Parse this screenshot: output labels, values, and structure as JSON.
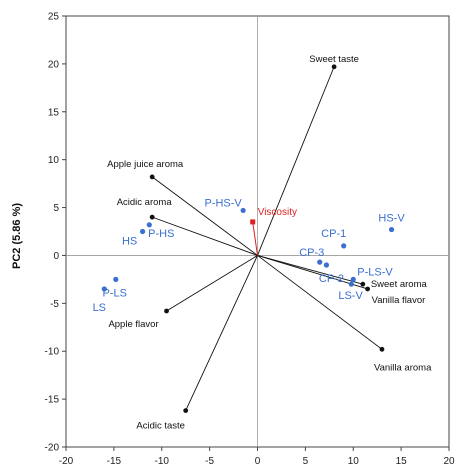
{
  "chart_data": {
    "type": "scatter",
    "title": "",
    "xlabel": "",
    "ylabel": "PC2 (5.86 %)",
    "xlim": [
      -20,
      20
    ],
    "ylim": [
      -20,
      25
    ],
    "xticks": [
      -20,
      -15,
      -10,
      -5,
      0,
      5,
      10,
      15,
      20
    ],
    "yticks": [
      -20,
      -15,
      -10,
      -5,
      0,
      5,
      10,
      15,
      20,
      25
    ],
    "grid": false,
    "colors": {
      "vectors": "#111111",
      "observations": "#3a6fd0",
      "viscosity": "#e02020"
    },
    "vectors": [
      {
        "name": "Sweet taste",
        "x": 8,
        "y": 19.7
      },
      {
        "name": "Apple juice aroma",
        "x": -11,
        "y": 8.2
      },
      {
        "name": "Acidic aroma",
        "x": -11,
        "y": 4
      },
      {
        "name": "Apple flavor",
        "x": -9.5,
        "y": -5.8
      },
      {
        "name": "Acidic taste",
        "x": -7.5,
        "y": -16.2
      },
      {
        "name": "Sweet aroma",
        "x": 11,
        "y": -3
      },
      {
        "name": "Vanilla flavor",
        "x": 11.5,
        "y": -3.5
      },
      {
        "name": "Vanilla aroma",
        "x": 13,
        "y": -9.8
      }
    ],
    "viscosity": {
      "name": "Viscosity",
      "x": -0.5,
      "y": 3.5
    },
    "observations": [
      {
        "name": "P-HS-V",
        "x": -1.5,
        "y": 4.7
      },
      {
        "name": "HS-V",
        "x": 14,
        "y": 2.7
      },
      {
        "name": "CP-1",
        "x": 9,
        "y": 1
      },
      {
        "name": "HS",
        "x": -12,
        "y": 2.5
      },
      {
        "name": "P-HS",
        "x": -11.3,
        "y": 3.2
      },
      {
        "name": "CP-3",
        "x": 6.5,
        "y": -0.7
      },
      {
        "name": "CP-2",
        "x": 7.2,
        "y": -1
      },
      {
        "name": "P-LS-V",
        "x": 10,
        "y": -2.5
      },
      {
        "name": "LS-V",
        "x": 9.8,
        "y": -3
      },
      {
        "name": "LS",
        "x": -16,
        "y": -3.5
      },
      {
        "name": "P-LS",
        "x": -14.8,
        "y": -2.5
      }
    ]
  }
}
